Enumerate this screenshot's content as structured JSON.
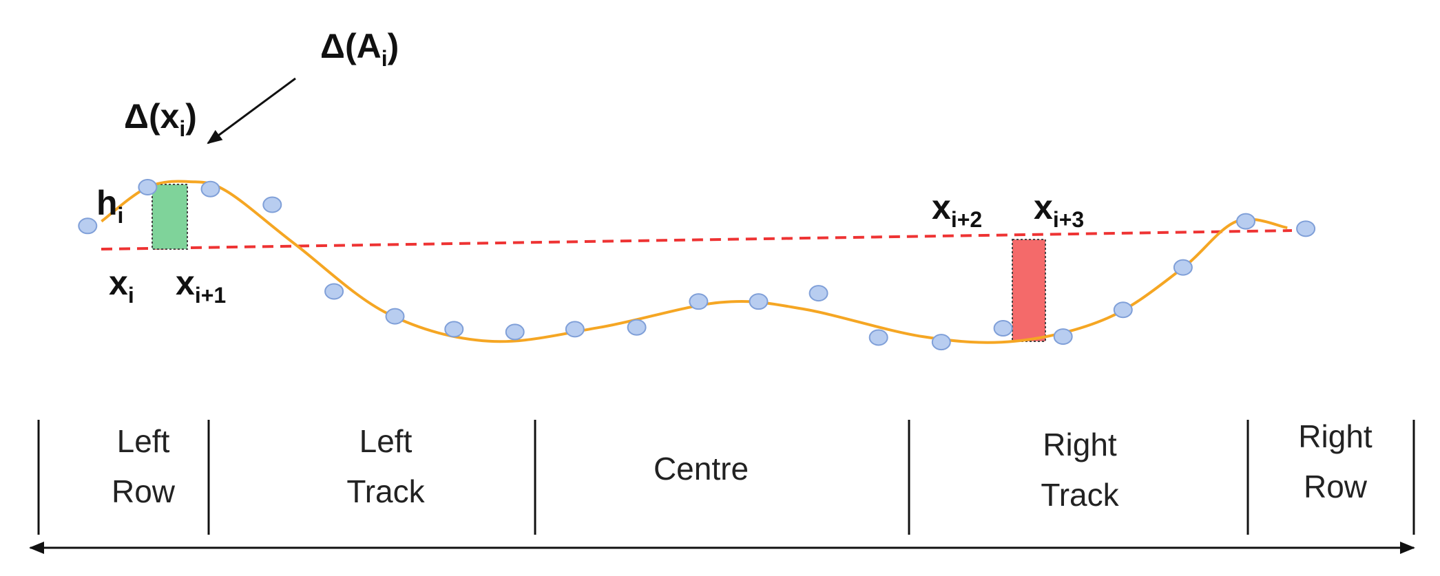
{
  "annotations": {
    "area_delta": {
      "base": "Δ(A",
      "sub": "i",
      "tail": ")"
    },
    "x_delta": {
      "base": "Δ(x",
      "sub": "i",
      "tail": ")"
    },
    "height": {
      "base": "h",
      "sub": "i"
    },
    "x_i": {
      "base": "x",
      "sub": "i"
    },
    "x_i1": {
      "base": "x",
      "sub": "i+1"
    },
    "x_i2": {
      "base": "x",
      "sub": "i+2"
    },
    "x_i3": {
      "base": "x",
      "sub": "i+3"
    }
  },
  "regions": [
    {
      "lines": [
        "Left",
        "Row"
      ]
    },
    {
      "lines": [
        "Left",
        "Track"
      ]
    },
    {
      "lines": [
        "Centre"
      ]
    },
    {
      "lines": [
        "Right",
        "Track"
      ]
    },
    {
      "lines": [
        "Right",
        "Row"
      ]
    }
  ]
}
